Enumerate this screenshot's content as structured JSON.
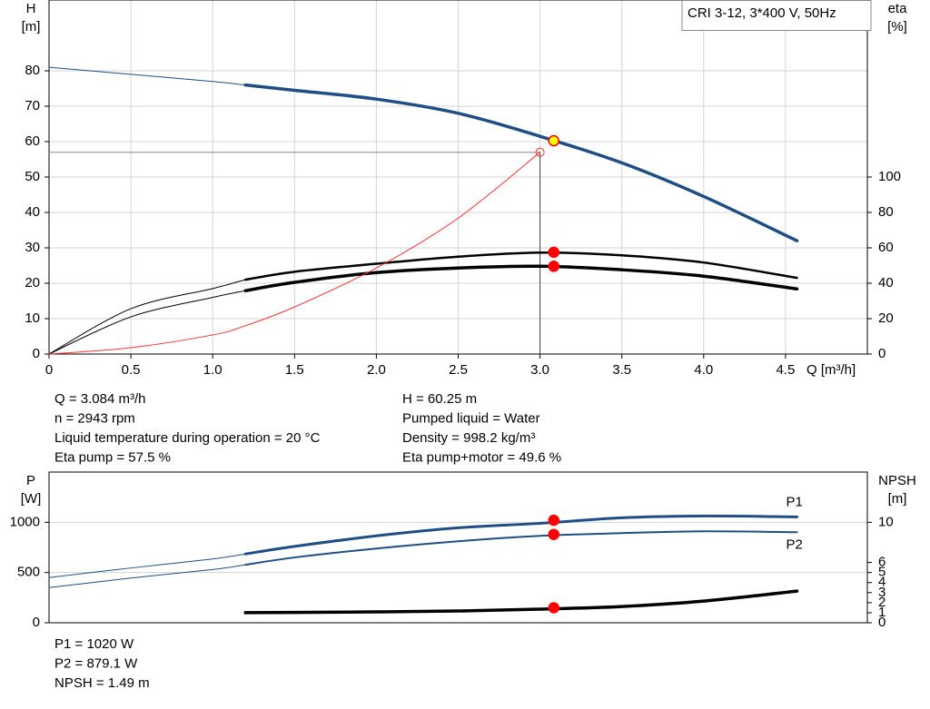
{
  "chart_data": [
    {
      "type": "line",
      "title": "CRI 3-12, 3*400 V, 50Hz",
      "ylabel": "H",
      "yunit": "[m]",
      "y2label": "eta",
      "y2unit": "[%]",
      "xlabel": "Q [m³/h]",
      "x": [
        0,
        0.5,
        1.0,
        1.2,
        1.5,
        2.0,
        2.5,
        3.0,
        3.5,
        4.0,
        4.57
      ],
      "xlim": [
        0,
        5
      ],
      "xticks": [
        0,
        0.5,
        {
          "value": 1,
          "label": "1.0"
        },
        1.5,
        {
          "value": 2,
          "label": "2.0"
        },
        2.5,
        {
          "value": 3,
          "label": "3.0"
        },
        3.5,
        {
          "value": 4,
          "label": "4.0"
        },
        4.5
      ],
      "ylim": [
        0,
        100
      ],
      "yticks": [
        0,
        10,
        20,
        30,
        40,
        50,
        60,
        70,
        80
      ],
      "y2lim": [
        0,
        200
      ],
      "y2ticks": [
        0,
        20,
        40,
        60,
        80,
        100
      ],
      "grid": true,
      "series": [
        {
          "color": "#1f4e85",
          "width": 1,
          "values": [
            81,
            79,
            77,
            76,
            null,
            null,
            null,
            null,
            null,
            null,
            null
          ]
        },
        {
          "color": "#1f4e85",
          "width": 3.5,
          "values": [
            null,
            null,
            null,
            76,
            74.5,
            72,
            68,
            61.5,
            54,
            44.5,
            32
          ]
        },
        {
          "color": "#000000",
          "width": 1,
          "axis": "y2",
          "values": [
            0,
            25.6,
            37,
            42,
            null,
            null,
            null,
            null,
            null,
            null,
            null
          ]
        },
        {
          "color": "#000000",
          "width": 2.5,
          "axis": "y2",
          "values": [
            null,
            null,
            null,
            42,
            46.5,
            51,
            55,
            57.3,
            55.8,
            51.7,
            43
          ]
        },
        {
          "color": "#000000",
          "width": 1,
          "axis": "y2",
          "values": [
            0,
            21,
            32,
            35.8,
            null,
            null,
            null,
            null,
            null,
            null,
            null
          ]
        },
        {
          "color": "#000000",
          "width": 3.5,
          "axis": "y2",
          "values": [
            null,
            null,
            null,
            35.8,
            40.5,
            46,
            48.6,
            49.6,
            47.6,
            44,
            36.8
          ]
        },
        {
          "color": "#ff3333",
          "width": 1,
          "values": [
            0,
            1.8,
            5.4,
            8,
            13.3,
            24.3,
            38.4,
            57,
            null,
            null,
            null
          ]
        }
      ],
      "points": [
        {
          "x": 3.084,
          "y": 60.25,
          "fill": "#ffff00",
          "stroke": "#ff0000"
        },
        {
          "x": 3.084,
          "y": 57.5,
          "axis": "y2",
          "fill": "#ff0000",
          "stroke": "#ff0000"
        },
        {
          "x": 3.084,
          "y": 49.6,
          "axis": "y2",
          "fill": "#ff0000",
          "stroke": "#ff0000"
        }
      ],
      "reference_point": {
        "x": 3.0,
        "y": 57,
        "color": "#ff3333"
      }
    },
    {
      "type": "line",
      "ylabel": "P",
      "yunit": "[W]",
      "y2label": "NPSH",
      "y2unit": "[m]",
      "x": [
        0,
        0.5,
        1.0,
        1.2,
        1.5,
        2.0,
        2.5,
        3.0,
        3.5,
        4.0,
        4.57
      ],
      "xlim": [
        0,
        5
      ],
      "ylim": [
        0,
        1500
      ],
      "yticks": [
        0,
        500,
        1000
      ],
      "y2lim": [
        0,
        15
      ],
      "y2ticks": [
        0,
        1,
        2,
        3,
        4,
        5,
        6,
        10
      ],
      "grid": true,
      "series": [
        {
          "color": "#1f4e85",
          "width": 1,
          "values": [
            450,
            545,
            635,
            685,
            null,
            null,
            null,
            null,
            null,
            null,
            null
          ]
        },
        {
          "name": "P1",
          "label_position": "above",
          "color": "#1f4e85",
          "width": 3,
          "values": [
            null,
            null,
            null,
            685,
            760,
            865,
            945,
            990,
            1045,
            1063,
            1054
          ]
        },
        {
          "color": "#1f4e85",
          "width": 1,
          "values": [
            350,
            445,
            530,
            577,
            null,
            null,
            null,
            null,
            null,
            null,
            null
          ]
        },
        {
          "name": "P2",
          "label_position": "below",
          "color": "#1f4e85",
          "width": 2,
          "values": [
            null,
            null,
            null,
            577,
            650,
            739,
            811,
            865,
            892,
            910,
            901
          ]
        },
        {
          "color": "#000000",
          "width": 3.5,
          "axis": "y2",
          "values": [
            null,
            null,
            null,
            1.0,
            1.03,
            1.08,
            1.17,
            1.35,
            1.62,
            2.16,
            3.15
          ]
        }
      ],
      "points": [
        {
          "x": 3.084,
          "y": 1020,
          "fill": "#ff0000",
          "stroke": "#ff0000"
        },
        {
          "x": 3.084,
          "y": 879.1,
          "fill": "#ff0000",
          "stroke": "#ff0000"
        },
        {
          "x": 3.084,
          "y": 1.49,
          "axis": "y2",
          "fill": "#ff0000",
          "stroke": "#ff0000"
        }
      ]
    }
  ],
  "readout": {
    "left": [
      "Q = 3.084 m³/h",
      "n = 2943 rpm",
      "Liquid temperature during operation = 20 °C",
      "Eta pump = 57.5 %"
    ],
    "right": [
      "H = 60.25 m",
      "Pumped liquid = Water",
      "Density = 998.2 kg/m³",
      "Eta pump+motor = 49.6 %"
    ],
    "bottom": [
      "P1 = 1020 W",
      "P2 = 879.1 W",
      "NPSH = 1.49 m"
    ]
  }
}
